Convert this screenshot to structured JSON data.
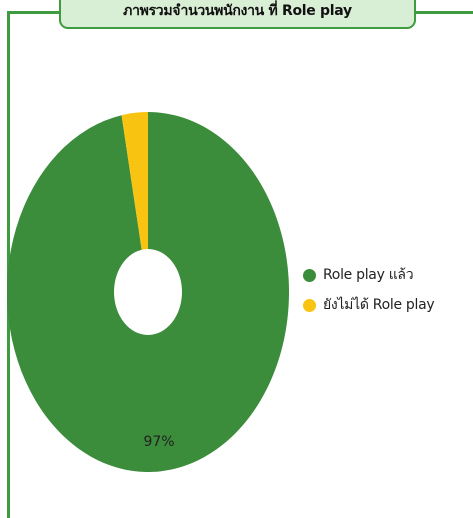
{
  "header": {
    "title": "ภาพรวมจำนวนพนักงาน ที่ Role play"
  },
  "chart_data": {
    "type": "pie",
    "donut": true,
    "title": "ภาพรวมจำนวนพนักงาน ที่ Role play",
    "categories": [
      "Role play แล้ว",
      "ยังไม่ได้ Role play"
    ],
    "values": [
      97,
      3
    ],
    "data_labels": [
      "97%",
      ""
    ],
    "colors": [
      "#3b8c3b",
      "#f9c311"
    ],
    "legend_position": "right"
  },
  "legend": {
    "items": [
      {
        "label": "Role play แล้ว",
        "color": "#3b8c3b"
      },
      {
        "label": "ยังไม่ได้ Role play",
        "color": "#f9c311"
      }
    ]
  }
}
